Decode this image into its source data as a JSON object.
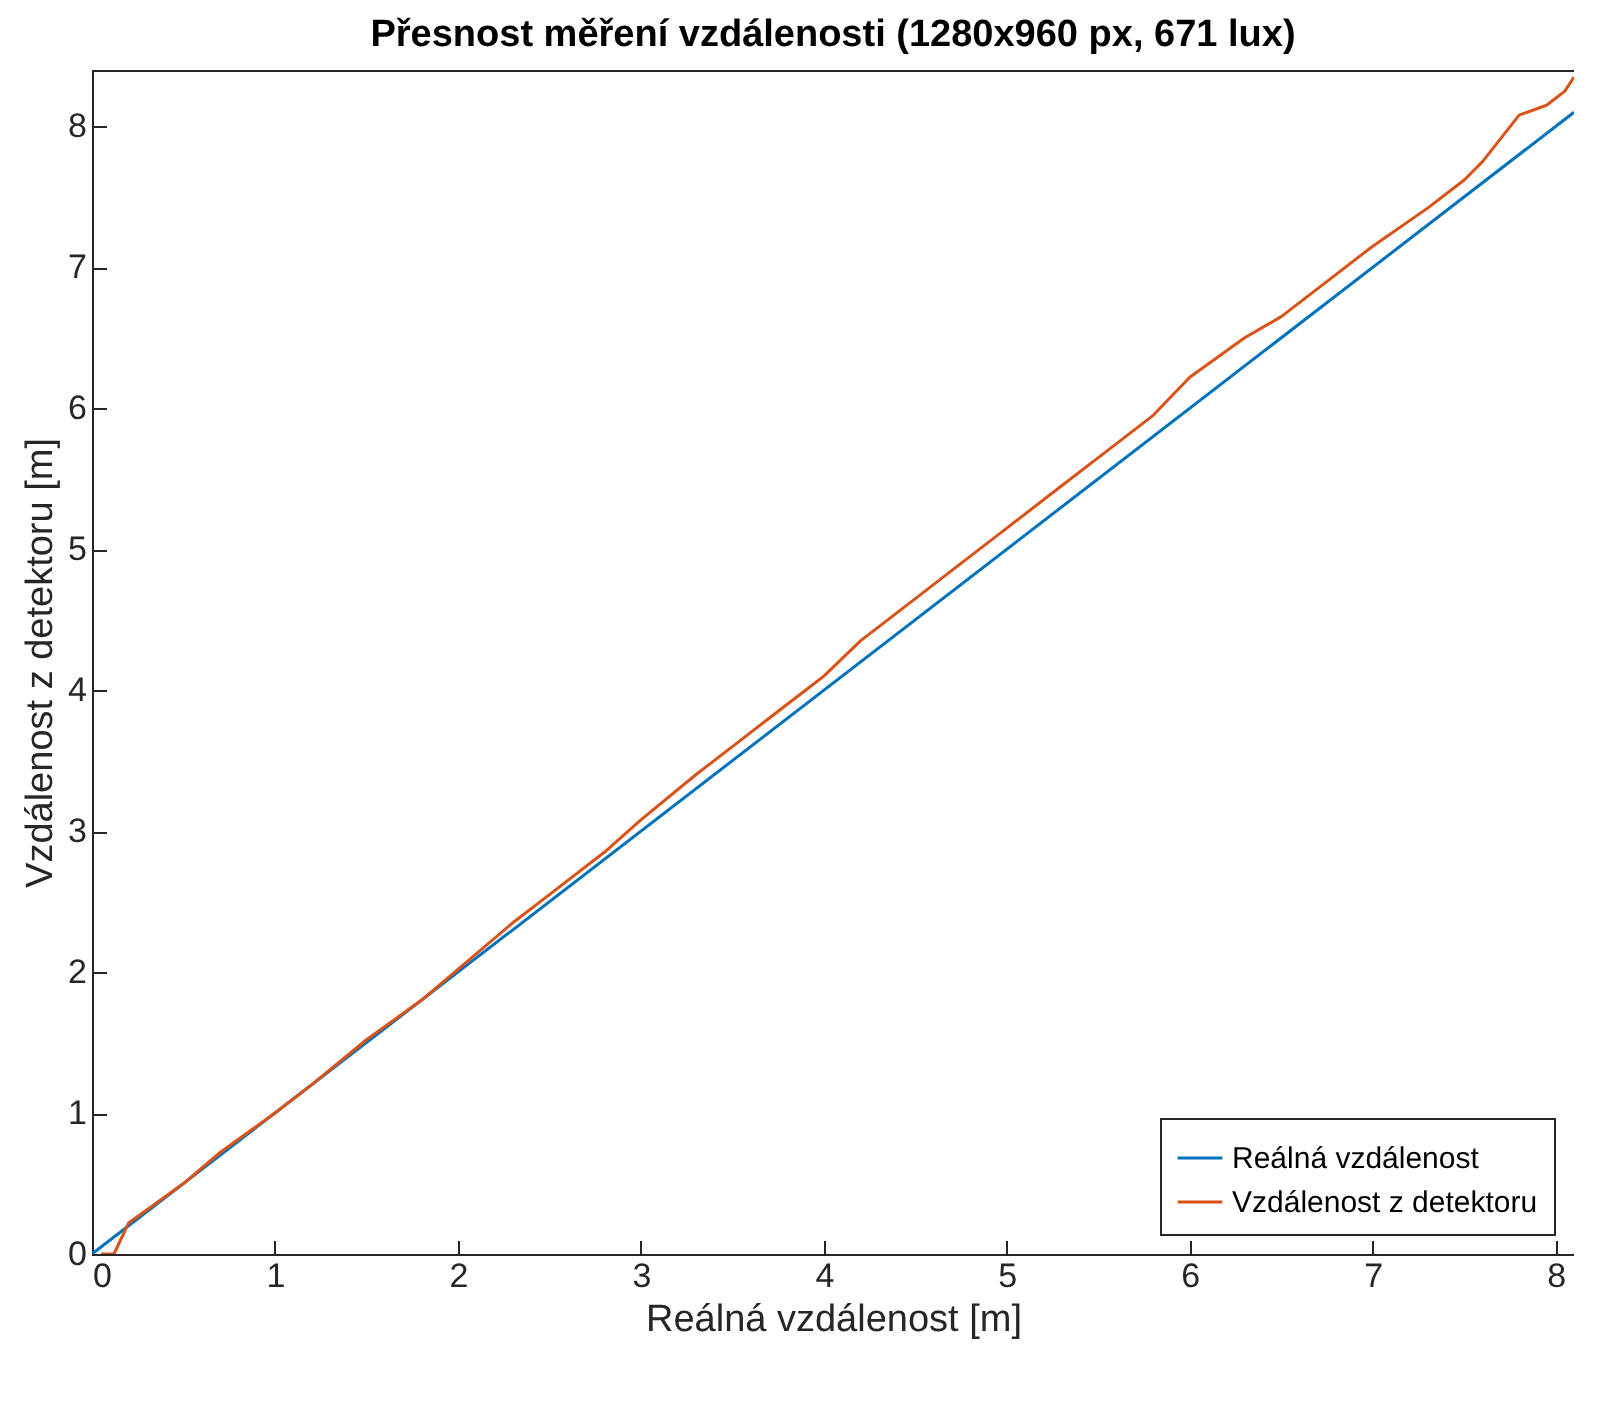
{
  "chart_data": {
    "type": "line",
    "title": "Přesnost měření vzdálenosti (1280x960 px, 671 lux)",
    "xlabel": "Reálná vzdálenost [m]",
    "ylabel": "Vzdálenost z detektoru [m]",
    "xlim": [
      0,
      8.1
    ],
    "ylim": [
      0,
      8.4
    ],
    "xticks": [
      0,
      1,
      2,
      3,
      4,
      5,
      6,
      7,
      8
    ],
    "yticks": [
      0,
      1,
      2,
      3,
      4,
      5,
      6,
      7,
      8
    ],
    "grid": false,
    "legend": "bottom right",
    "marker": "none",
    "line_style": "solid",
    "series": [
      {
        "name": "Reálná vzdálenost",
        "color": "#0072bd",
        "x": [
          0,
          8.1
        ],
        "values": [
          0,
          8.1
        ]
      },
      {
        "name": "Vzdálenost z detektoru",
        "color": "#d95319",
        "x": [
          0.05,
          0.12,
          0.2,
          0.5,
          0.7,
          1,
          1.2,
          1.5,
          1.8,
          2,
          2.3,
          2.5,
          2.8,
          3,
          3.3,
          3.5,
          3.8,
          3.9,
          4,
          4.2,
          4.5,
          4.7,
          5,
          5.3,
          5.5,
          5.8,
          6,
          6.3,
          6.5,
          6.8,
          7,
          7.3,
          7.5,
          7.6,
          7.8,
          7.95,
          8.05,
          8.1
        ],
        "values": [
          0,
          0,
          0.22,
          0.5,
          0.72,
          1.0,
          1.2,
          1.52,
          1.8,
          2.02,
          2.35,
          2.55,
          2.85,
          3.08,
          3.4,
          3.6,
          3.9,
          4.0,
          4.1,
          4.35,
          4.65,
          4.85,
          5.15,
          5.45,
          5.65,
          5.95,
          6.22,
          6.5,
          6.65,
          6.95,
          7.15,
          7.42,
          7.62,
          7.75,
          8.08,
          8.15,
          8.25,
          8.35
        ]
      }
    ]
  }
}
